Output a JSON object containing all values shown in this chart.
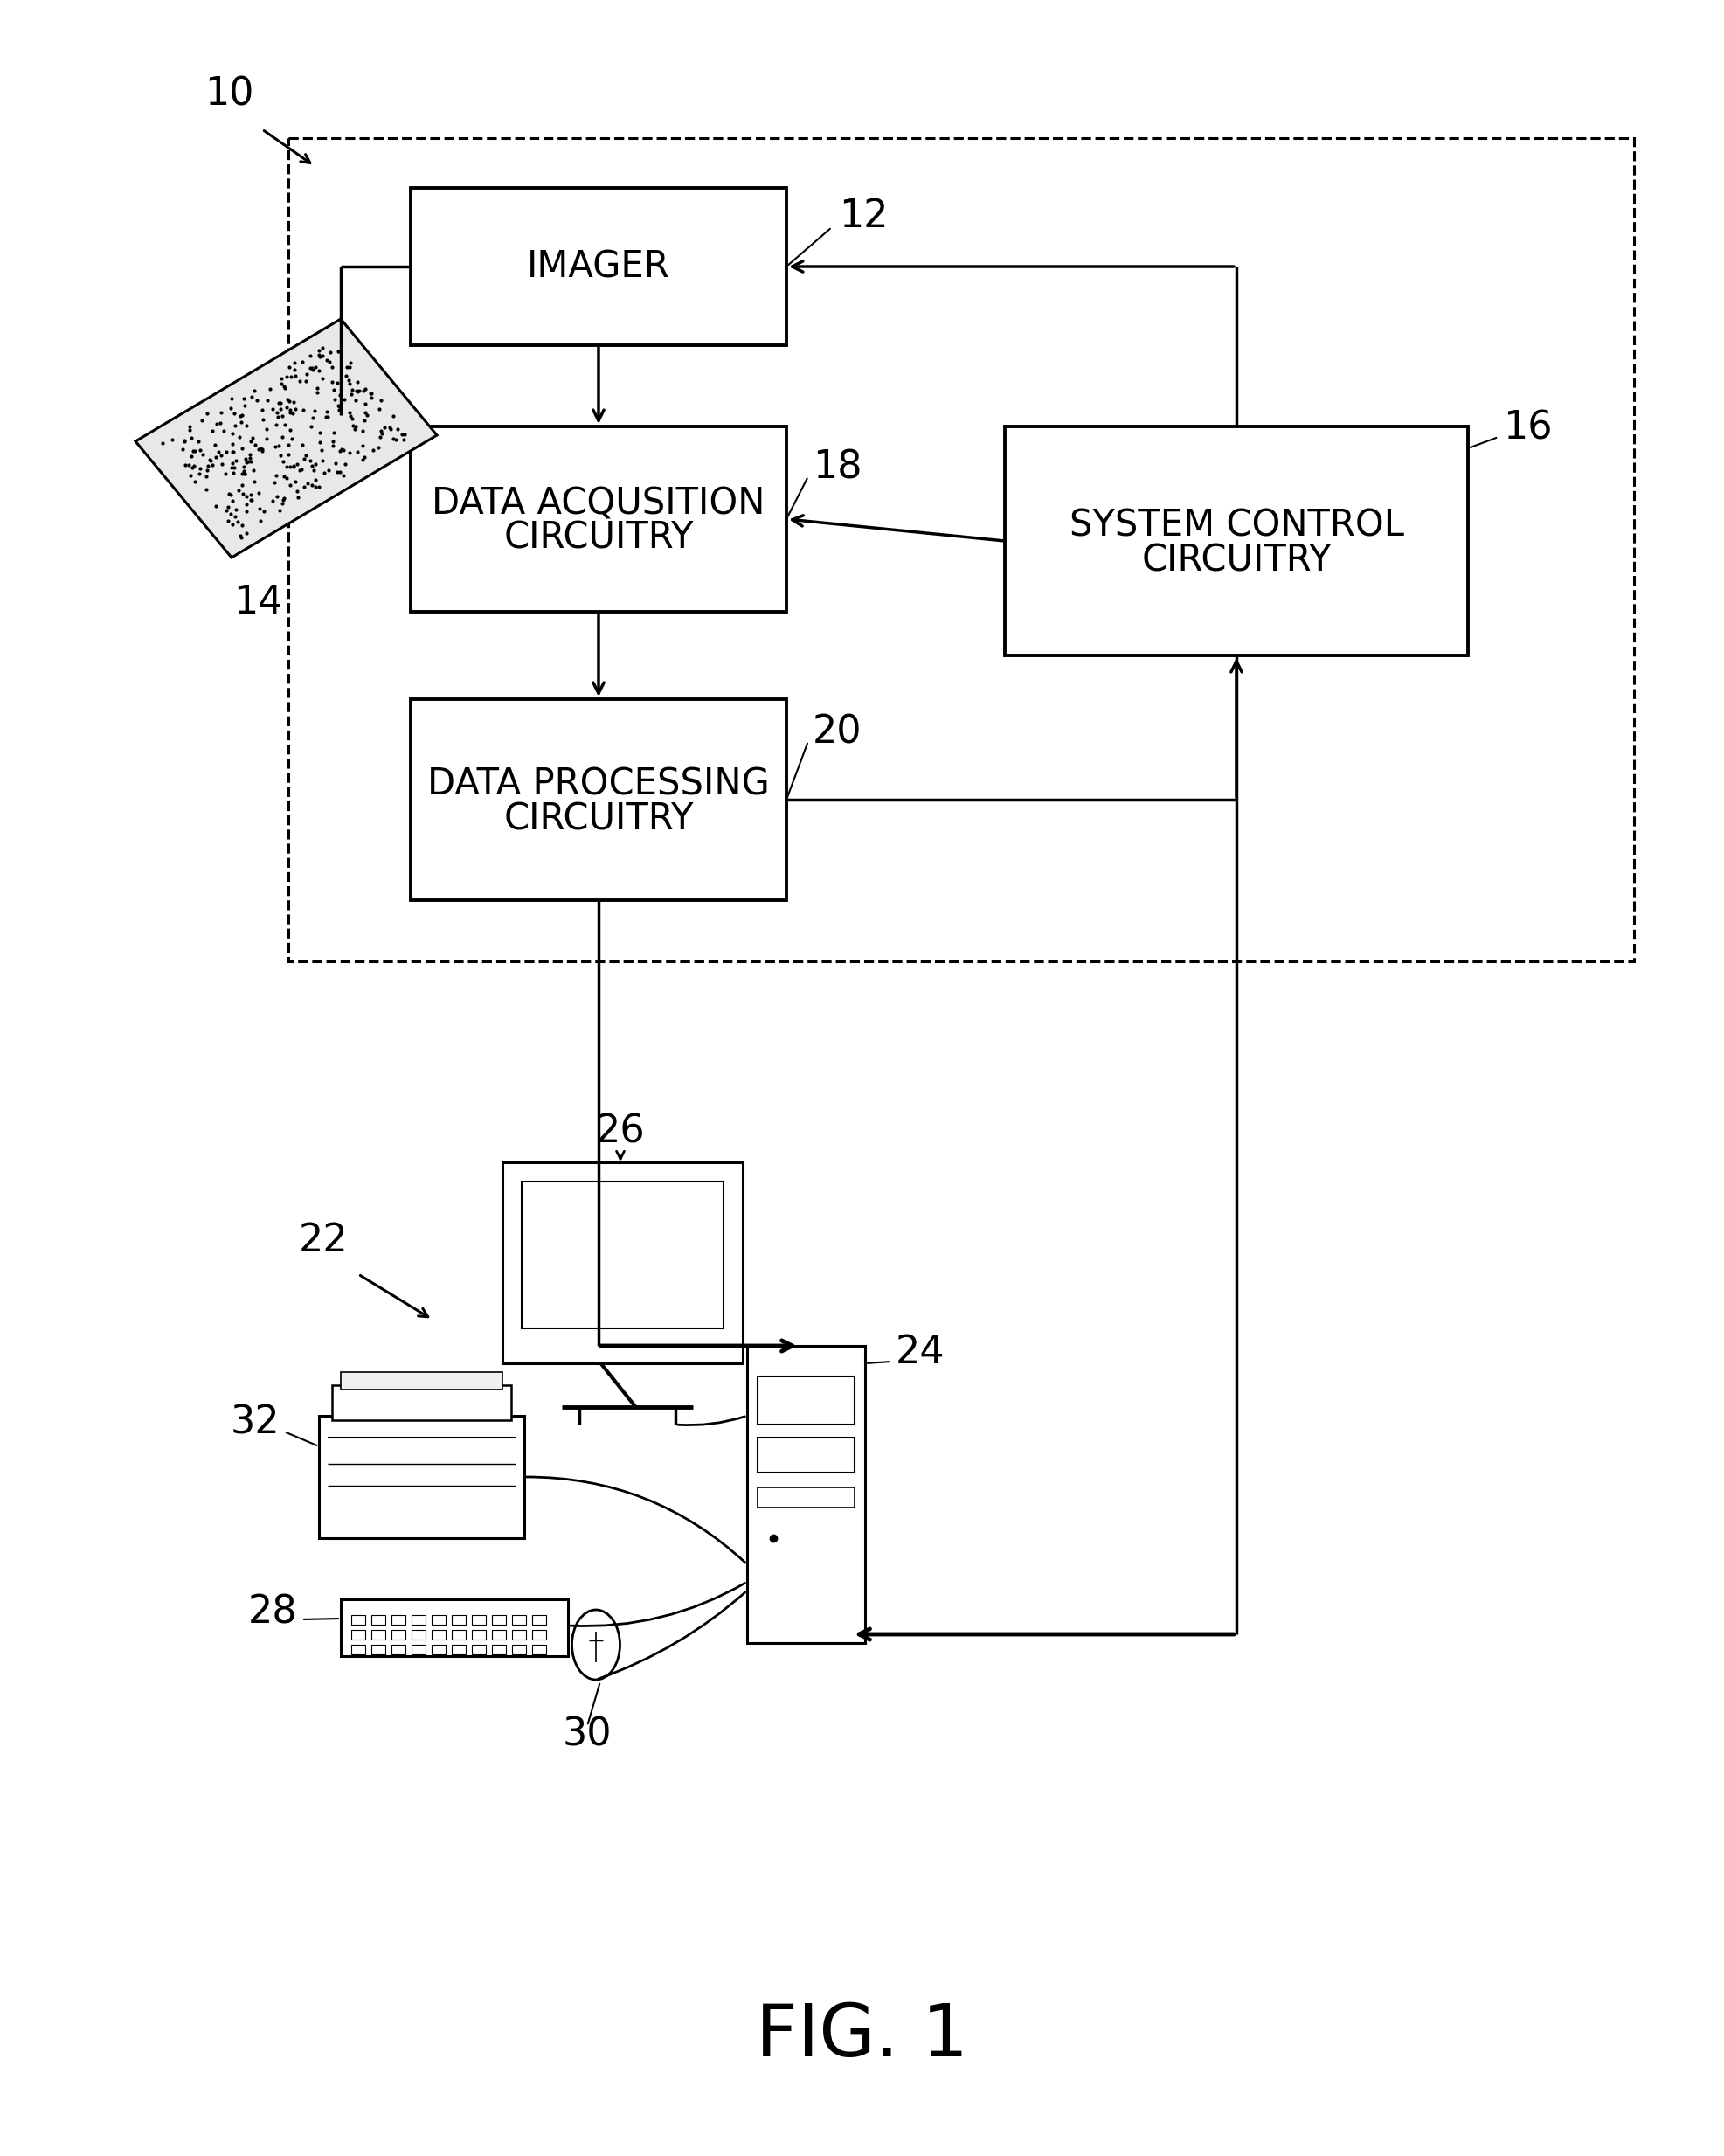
{
  "bg_color": "#ffffff",
  "fig_label": "FIG. 1",
  "label_10": "10",
  "label_12": "12",
  "label_14": "14",
  "label_16": "16",
  "label_18": "18",
  "label_20": "20",
  "label_22": "22",
  "label_24": "24",
  "label_26": "26",
  "label_28": "28",
  "label_30": "30",
  "label_32": "32",
  "box_imager_text": "IMAGER",
  "box_dac_line1": "DATA ACQUSITION",
  "box_dac_line2": "CIRCUITRY",
  "box_dpc_line1": "DATA PROCESSING",
  "box_dpc_line2": "CIRCUITRY",
  "box_scc_line1": "SYSTEM CONTROL",
  "box_scc_line2": "CIRCUITRY",
  "line_color": "#000000"
}
